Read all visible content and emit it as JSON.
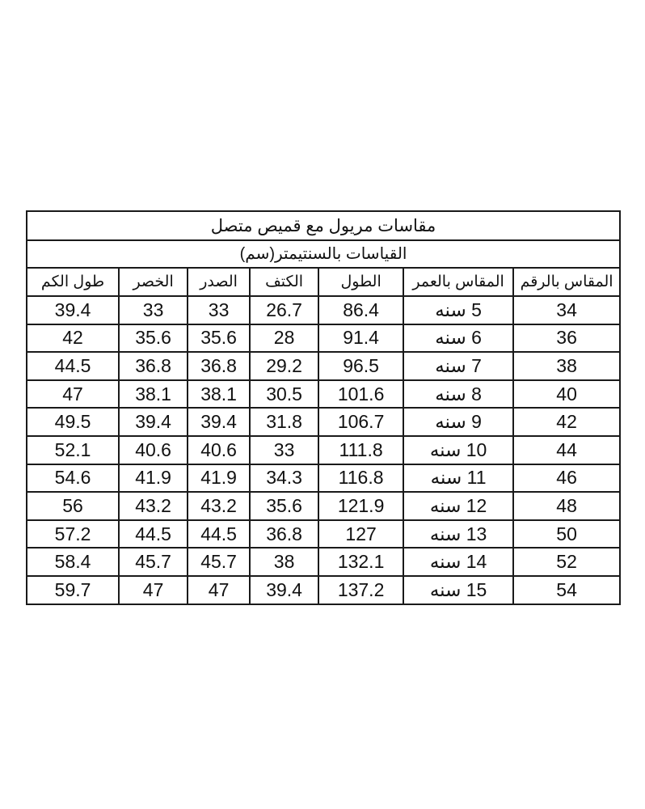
{
  "title": "مقاسات مريول مع قميص متصل",
  "subtitle": "القياسات بالسنتيمتر(سم)",
  "headers": [
    "المقاس بالرقم",
    "المقاس بالعمر",
    "الطول",
    "الكتف",
    "الصدر",
    "الخصر",
    "طول الكم"
  ],
  "rows": [
    [
      "34",
      "5 سنه",
      "86.4",
      "26.7",
      "33",
      "33",
      "39.4"
    ],
    [
      "36",
      "6 سنه",
      "91.4",
      "28",
      "35.6",
      "35.6",
      "42"
    ],
    [
      "38",
      "7 سنه",
      "96.5",
      "29.2",
      "36.8",
      "36.8",
      "44.5"
    ],
    [
      "40",
      "8 سنه",
      "101.6",
      "30.5",
      "38.1",
      "38.1",
      "47"
    ],
    [
      "42",
      "9 سنه",
      "106.7",
      "31.8",
      "39.4",
      "39.4",
      "49.5"
    ],
    [
      "44",
      "10 سنه",
      "111.8",
      "33",
      "40.6",
      "40.6",
      "52.1"
    ],
    [
      "46",
      "11 سنه",
      "116.8",
      "34.3",
      "41.9",
      "41.9",
      "54.6"
    ],
    [
      "48",
      "12 سنه",
      "121.9",
      "35.6",
      "43.2",
      "43.2",
      "56"
    ],
    [
      "50",
      "13 سنه",
      "127",
      "36.8",
      "44.5",
      "44.5",
      "57.2"
    ],
    [
      "52",
      "14 سنه",
      "132.1",
      "38",
      "45.7",
      "45.7",
      "58.4"
    ],
    [
      "54",
      "15 سنه",
      "137.2",
      "39.4",
      "47",
      "47",
      "59.7"
    ]
  ]
}
